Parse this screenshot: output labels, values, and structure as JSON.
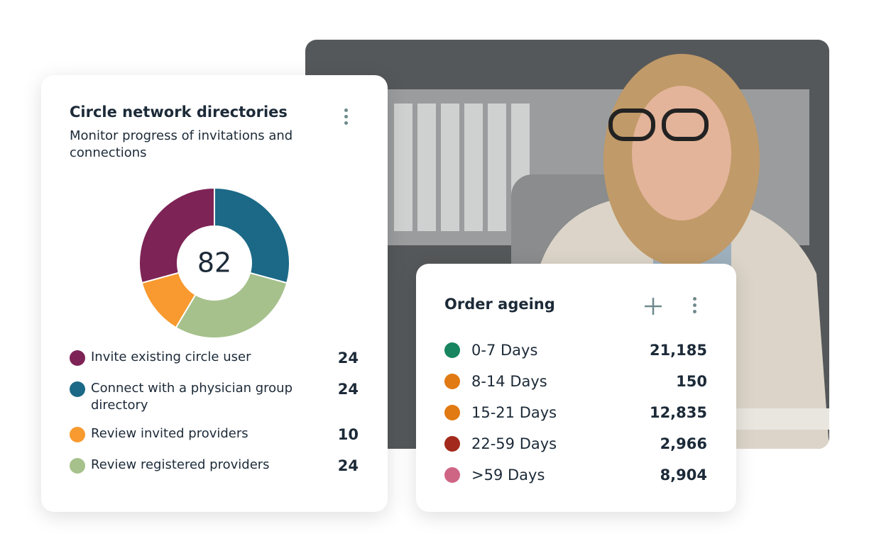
{
  "donut_card": {
    "title": "Circle network directories",
    "subtitle": "Monitor progress of invitations and connections",
    "total": 82,
    "items": [
      {
        "label": "Invite existing circle user",
        "value": 24,
        "color": "#7d2356"
      },
      {
        "label": "Connect with a physician group directory",
        "value": 24,
        "color": "#1b6986"
      },
      {
        "label": "Review invited providers",
        "value": 10,
        "color": "#f89a2f"
      },
      {
        "label": "Review registered providers",
        "value": 24,
        "color": "#a6c18c"
      }
    ]
  },
  "order_card": {
    "title": "Order ageing",
    "rows": [
      {
        "label": "0-7 Days",
        "value": "21,185",
        "color": "#17855f"
      },
      {
        "label": "8-14 Days",
        "value": "150",
        "color": "#e17a12"
      },
      {
        "label": "15-21 Days",
        "value": "12,835",
        "color": "#e17a12"
      },
      {
        "label": "22-59 Days",
        "value": "2,966",
        "color": "#a2291b"
      },
      {
        "label": ">59 Days",
        "value": "8,904",
        "color": "#cf6585"
      }
    ]
  }
}
